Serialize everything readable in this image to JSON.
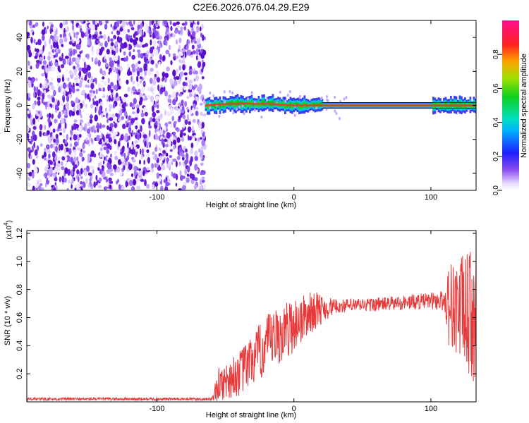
{
  "title": "C2E6.2026.076.04.29.E29",
  "colors": {
    "background": "#ffffff",
    "snr_line": "#e8393a",
    "noise_purple": "#6b1fd8",
    "ridge": "#e8393a",
    "axis": "#000000"
  },
  "colorbar": {
    "label": "Normalized spectral amplitude",
    "ticks": [
      "0.0",
      "0.2",
      "0.4",
      "0.6",
      "0.8"
    ],
    "tick_values": [
      0.0,
      0.2,
      0.4,
      0.6,
      0.8
    ],
    "range": [
      0,
      1
    ]
  },
  "chart_data": [
    {
      "type": "heatmap",
      "title": "C2E6.2026.076.04.29.E29",
      "xlabel": "Height of straight line (km)",
      "ylabel": "Frequency (Hz)",
      "xlim": [
        -195,
        133
      ],
      "ylim": [
        -50,
        50
      ],
      "xticks": [
        -100,
        0,
        100
      ],
      "xtick_labels": [
        "-100",
        "0",
        "100"
      ],
      "yticks": [
        -40,
        -20,
        0,
        20,
        40
      ],
      "ytick_labels": [
        "-40",
        "-20",
        "0",
        "20",
        "40"
      ],
      "noise_region_x": [
        -195,
        -65
      ],
      "ridge": {
        "frequency": 0,
        "x_range": [
          -65,
          133
        ],
        "description_points": [
          {
            "x": -65,
            "f": 0
          },
          {
            "x": -45,
            "f": 1
          },
          {
            "x": -20,
            "f": 1
          },
          {
            "x": 0,
            "f": 0
          },
          {
            "x": 100,
            "f": 0
          },
          {
            "x": 133,
            "f": 0
          }
        ]
      }
    },
    {
      "type": "line",
      "xlabel": "Height of straight line (km)",
      "ylabel": "SNR (10 * v/v)",
      "y_multiplier_label": "(x10",
      "y_multiplier_exp": "4",
      "y_multiplier_close": ")",
      "xlim": [
        -195,
        133
      ],
      "ylim": [
        0.0,
        1.22
      ],
      "xticks": [
        -100,
        0,
        100
      ],
      "xtick_labels": [
        "-100",
        "0",
        "100"
      ],
      "yticks": [
        0.2,
        0.4,
        0.6,
        0.8,
        1.0,
        1.2
      ],
      "ytick_labels": [
        "0.2",
        "0.4",
        "0.6",
        "0.8",
        "1.0",
        "1.2"
      ],
      "series": [
        {
          "name": "SNR",
          "envelope": [
            {
              "x": -195,
              "mean": 0.02,
              "spread": 0.01
            },
            {
              "x": -60,
              "mean": 0.02,
              "spread": 0.01
            },
            {
              "x": -55,
              "mean": 0.12,
              "spread": 0.12
            },
            {
              "x": -40,
              "mean": 0.2,
              "spread": 0.16
            },
            {
              "x": -20,
              "mean": 0.4,
              "spread": 0.22
            },
            {
              "x": 0,
              "mean": 0.55,
              "spread": 0.2
            },
            {
              "x": 15,
              "mean": 0.65,
              "spread": 0.14
            },
            {
              "x": 30,
              "mean": 0.68,
              "spread": 0.05
            },
            {
              "x": 70,
              "mean": 0.7,
              "spread": 0.05
            },
            {
              "x": 100,
              "mean": 0.72,
              "spread": 0.06
            },
            {
              "x": 110,
              "mean": 0.72,
              "spread": 0.08
            },
            {
              "x": 113,
              "mean": 0.7,
              "spread": 0.3
            },
            {
              "x": 133,
              "mean": 0.6,
              "spread": 0.5
            }
          ]
        }
      ]
    }
  ]
}
